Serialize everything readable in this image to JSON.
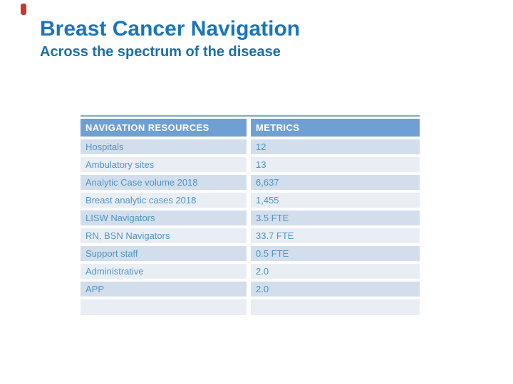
{
  "slide": {
    "title": "Breast Cancer Navigation",
    "subtitle": "Across the spectrum of the disease"
  },
  "colors": {
    "title_text": "#1a75bb",
    "subtitle_text": "#1d6ea6",
    "accent_mark": "#c4392f",
    "table_top_border": "#7aa7d8",
    "header_bg": "#6f9fd3",
    "header_text": "#ffffff",
    "row_band_dark": "#d2deeb",
    "row_band_light": "#e9eef5",
    "body_text": "#4e95c2"
  },
  "chart_data": {
    "type": "table",
    "title": "Breast Cancer Navigation",
    "columns": [
      "NAVIGATION RESOURCES",
      "METRICS"
    ],
    "rows": [
      [
        "Hospitals",
        "12"
      ],
      [
        "Ambulatory sites",
        "13"
      ],
      [
        "Analytic Case volume 2018",
        "6,637"
      ],
      [
        "Breast analytic cases 2018",
        "1,455"
      ],
      [
        "LISW Navigators",
        "3.5 FTE"
      ],
      [
        "RN, BSN Navigators",
        "33.7 FTE"
      ],
      [
        "Support staff",
        "0.5 FTE"
      ],
      [
        "Administrative",
        "2.0"
      ],
      [
        "APP",
        "2.0"
      ],
      [
        "",
        ""
      ]
    ]
  },
  "table": {
    "header": {
      "col1": "NAVIGATION RESOURCES",
      "col2": "METRICS"
    },
    "rows": [
      {
        "label": "Hospitals",
        "metric": "12"
      },
      {
        "label": "Ambulatory sites",
        "metric": "13"
      },
      {
        "label": "Analytic Case volume 2018",
        "metric": "6,637"
      },
      {
        "label": "Breast analytic cases 2018",
        "metric": "1,455"
      },
      {
        "label": "LISW Navigators",
        "metric": "3.5 FTE"
      },
      {
        "label": "RN, BSN Navigators",
        "metric": "33.7 FTE"
      },
      {
        "label": "Support staff",
        "metric": "0.5 FTE"
      },
      {
        "label": "Administrative",
        "metric": "2.0"
      },
      {
        "label": "APP",
        "metric": "2.0"
      },
      {
        "label": "",
        "metric": ""
      }
    ]
  }
}
